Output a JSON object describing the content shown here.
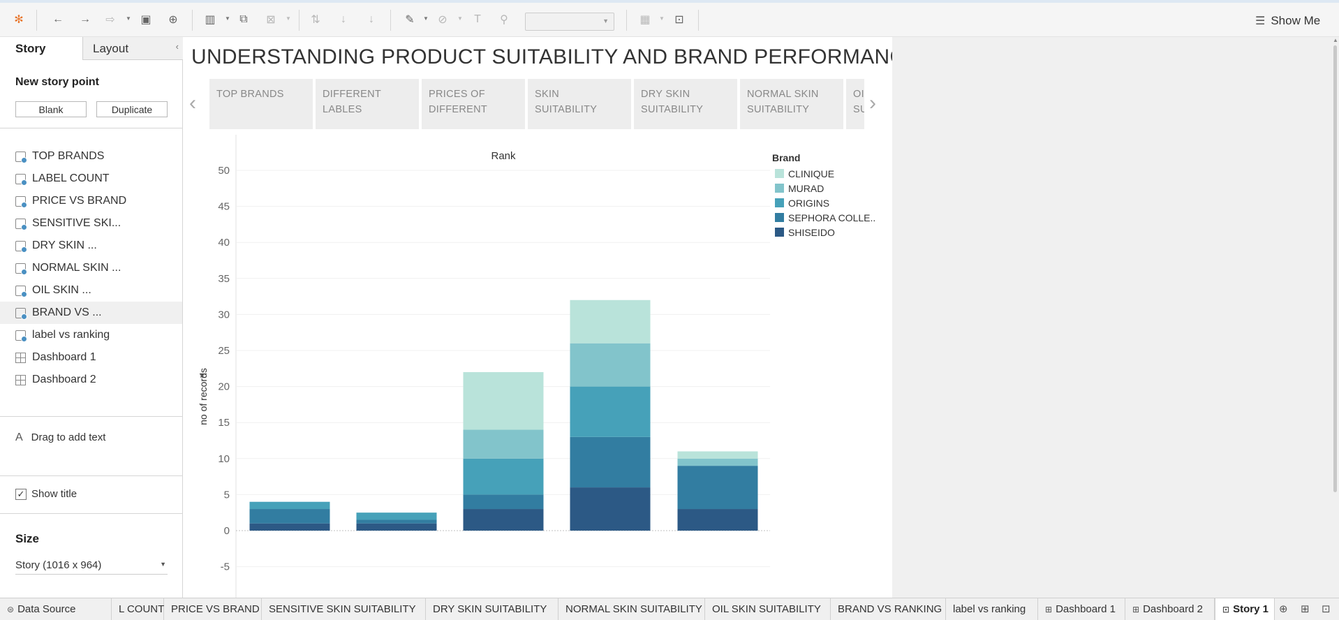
{
  "toolbar": {
    "show_me_label": "Show Me"
  },
  "sidebar": {
    "tabs": {
      "story": "Story",
      "layout": "Layout"
    },
    "new_story_point": "New story point",
    "blank_label": "Blank",
    "duplicate_label": "Duplicate",
    "story_points": [
      {
        "label": "TOP BRANDS",
        "kind": "sheet"
      },
      {
        "label": "LABEL COUNT",
        "kind": "sheet"
      },
      {
        "label": "PRICE VS BRAND",
        "kind": "sheet"
      },
      {
        "label": "SENSITIVE SKI...",
        "kind": "sheet"
      },
      {
        "label": "DRY SKIN ...",
        "kind": "sheet"
      },
      {
        "label": "NORMAL SKIN ...",
        "kind": "sheet"
      },
      {
        "label": "OIL SKIN ...",
        "kind": "sheet"
      },
      {
        "label": "BRAND VS ...",
        "kind": "sheet"
      },
      {
        "label": "label vs ranking",
        "kind": "sheet"
      },
      {
        "label": "Dashboard 1",
        "kind": "dashboard"
      },
      {
        "label": "Dashboard 2",
        "kind": "dashboard"
      }
    ],
    "drag_text": "Drag to add text",
    "show_title": "Show title",
    "size_label": "Size",
    "size_value": "Story (1016 x 964)"
  },
  "story": {
    "title": "UNDERSTANDING PRODUCT SUITABILITY AND BRAND PERFORMANCE",
    "points": [
      {
        "line1": "TOP BRANDS",
        "line2": ""
      },
      {
        "line1": "DIFFERENT",
        "line2": "LABLES"
      },
      {
        "line1": "PRICES OF",
        "line2": "DIFFERENT"
      },
      {
        "line1": "SKIN SUITABILITY",
        "line2": ""
      },
      {
        "line1": "DRY SKIN",
        "line2": "SUITABILITY"
      },
      {
        "line1": "NORMAL SKIN",
        "line2": "SUITABILITY"
      },
      {
        "line1": "OI",
        "line2": "SU"
      }
    ]
  },
  "chart_data": {
    "type": "bar",
    "stacked": true,
    "title": "Rank",
    "ylabel": "no of records",
    "ylim": [
      -5,
      50
    ],
    "yticks": [
      -5,
      0,
      5,
      10,
      15,
      20,
      25,
      30,
      35,
      40,
      45,
      50
    ],
    "categories": [
      "",
      "",
      "",
      "",
      ""
    ],
    "legend_title": "Brand",
    "legend_position": "right",
    "series": [
      {
        "name": "SHISEIDO",
        "color": "#2c5985",
        "values": [
          1,
          1,
          3,
          6,
          3
        ]
      },
      {
        "name": "SEPHORA COLLE..",
        "color": "#327da1",
        "values": [
          2,
          0.5,
          2,
          7,
          6
        ]
      },
      {
        "name": "ORIGINS",
        "color": "#46a1b9",
        "values": [
          1,
          1,
          5,
          7,
          0
        ]
      },
      {
        "name": "MURAD",
        "color": "#82c4cb",
        "values": [
          0,
          0,
          4,
          6,
          1
        ]
      },
      {
        "name": "CLINIQUE",
        "color": "#b9e3da",
        "values": [
          0,
          0,
          8,
          6,
          1
        ]
      }
    ]
  },
  "footer": {
    "tabs": [
      {
        "label": "Data Source",
        "kind": "source"
      },
      {
        "label": "L COUNT",
        "kind": "sheet"
      },
      {
        "label": "PRICE VS BRAND",
        "kind": "sheet"
      },
      {
        "label": "SENSITIVE SKIN SUITABILITY",
        "kind": "sheet"
      },
      {
        "label": "DRY SKIN SUITABILITY",
        "kind": "sheet"
      },
      {
        "label": "NORMAL SKIN SUITABILITY",
        "kind": "sheet"
      },
      {
        "label": "OIL SKIN SUITABILITY",
        "kind": "sheet"
      },
      {
        "label": "BRAND VS RANKING",
        "kind": "sheet"
      },
      {
        "label": "label vs ranking",
        "kind": "sheet"
      },
      {
        "label": "Dashboard 1",
        "kind": "dashboard"
      },
      {
        "label": "Dashboard 2",
        "kind": "dashboard"
      },
      {
        "label": "Story 1",
        "kind": "story",
        "active": true
      }
    ]
  }
}
